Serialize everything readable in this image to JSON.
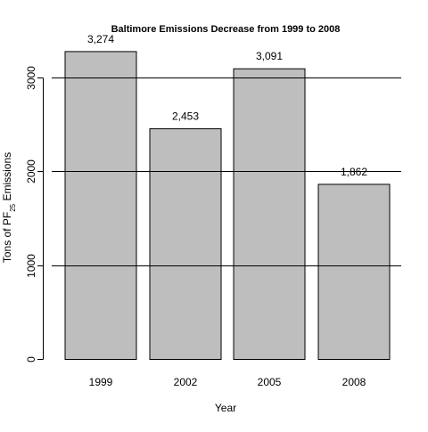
{
  "chart_data": {
    "type": "bar",
    "title": "Baltimore Emissions Decrease from 1999 to 2008",
    "xlabel": "Year",
    "ylabel": {
      "prefix": "Tons of PF",
      "subscript": "25",
      "suffix": " Emissions"
    },
    "categories": [
      "1999",
      "2002",
      "2005",
      "2008"
    ],
    "values": [
      3274,
      2453,
      3091,
      1862
    ],
    "data_labels": [
      "3,274",
      "2,453",
      "3,091",
      "1,862"
    ],
    "ylim": [
      0,
      3330
    ],
    "yticks": [
      0,
      1000,
      2000,
      3000
    ],
    "ytick_labels": [
      "0",
      "1000",
      "2000",
      "3000"
    ],
    "grid": "horizontal at 1000, 2000, 3000",
    "legend": "none",
    "colors": {
      "bar_fill": "#bebebe",
      "bar_stroke": "#000000",
      "gridline": "#000000",
      "background": "#ffffff"
    }
  }
}
